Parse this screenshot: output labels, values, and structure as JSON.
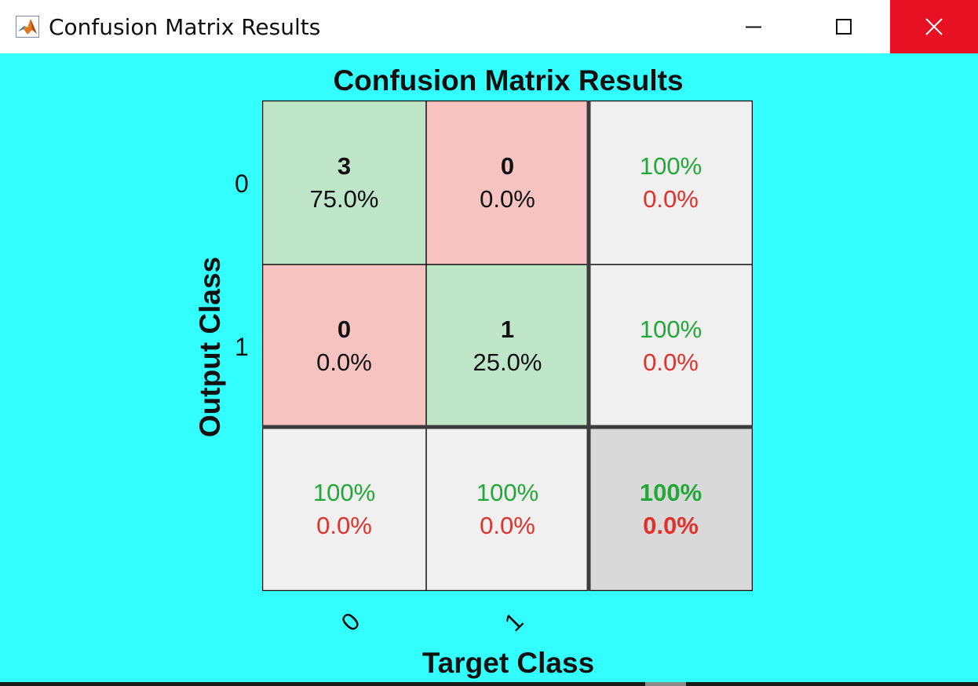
{
  "window": {
    "title": "Confusion Matrix Results",
    "icon": "matlab-icon",
    "controls": [
      "minimize-icon",
      "maximize-icon",
      "close-icon"
    ],
    "close_color": "#e81123",
    "background": "#33ffff"
  },
  "figure": {
    "title": "Confusion Matrix Results",
    "xlabel": "Target Class",
    "ylabel": "Output Class",
    "x_ticks": [
      "0",
      "1"
    ],
    "y_ticks": [
      "0",
      "1"
    ]
  },
  "matrix": {
    "r0c0": {
      "count": "3",
      "pct": "75.0%"
    },
    "r0c1": {
      "count": "0",
      "pct": "0.0%"
    },
    "r1c0": {
      "count": "0",
      "pct": "0.0%"
    },
    "r1c1": {
      "count": "1",
      "pct": "25.0%"
    },
    "row0_summary": {
      "correct": "100%",
      "error": "0.0%"
    },
    "row1_summary": {
      "correct": "100%",
      "error": "0.0%"
    },
    "col0_summary": {
      "correct": "100%",
      "error": "0.0%"
    },
    "col1_summary": {
      "correct": "100%",
      "error": "0.0%"
    },
    "overall": {
      "correct": "100%",
      "error": "0.0%"
    }
  },
  "colors": {
    "correct_cell": "#bfe6c8",
    "error_cell": "#f7c3c0",
    "summary_cell": "#f0f0f0",
    "overall_cell": "#d9d9d9",
    "correct_text": "#22a838",
    "error_text": "#e0312b"
  }
}
